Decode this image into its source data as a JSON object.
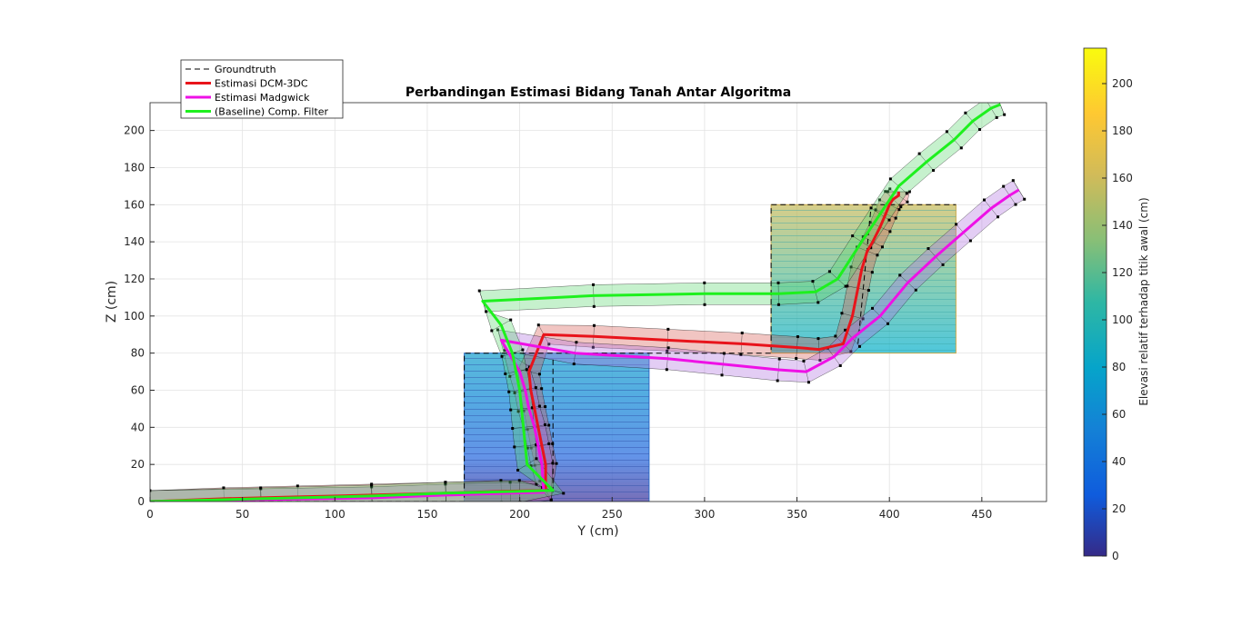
{
  "chart_data": {
    "type": "line",
    "title": "Perbandingan Estimasi Bidang Tanah Antar Algoritma",
    "xlabel": "Y (cm)",
    "ylabel": "Z (cm)",
    "xlim": [
      0,
      485
    ],
    "ylim": [
      0,
      215
    ],
    "xticks": [
      0,
      50,
      100,
      150,
      200,
      250,
      300,
      350,
      400,
      450
    ],
    "yticks": [
      0,
      20,
      40,
      60,
      80,
      100,
      120,
      140,
      160,
      180,
      200
    ],
    "grid": true,
    "legend_position": "top-left",
    "colorbar": {
      "label": "Elevasi relatif terhadap titik awal (cm)",
      "range": [
        0,
        215
      ],
      "ticks": [
        0,
        20,
        40,
        60,
        80,
        100,
        120,
        140,
        160,
        180,
        200
      ],
      "colormap": "parula"
    },
    "steps": [
      {
        "name": "step-1",
        "y": [
          170,
          270
        ],
        "z": [
          0,
          80
        ]
      },
      {
        "name": "step-2",
        "y": [
          336,
          436
        ],
        "z": [
          80,
          160
        ]
      }
    ],
    "series": [
      {
        "name": "Groundtruth",
        "color": "#000000",
        "dash": true,
        "x": [
          0,
          170,
          170,
          270,
          336,
          336,
          436
        ],
        "y": [
          0,
          0,
          80,
          80,
          80,
          160,
          160
        ],
        "lines": [
          {
            "x": [
              218,
              218
            ],
            "y": [
              5,
              78
            ]
          },
          {
            "x": [
              383,
              390
            ],
            "y": [
              85,
              158
            ]
          }
        ]
      },
      {
        "name": "Estimasi DCM-3DC",
        "color": "#e8141b",
        "x": [
          0,
          40,
          80,
          120,
          160,
          190,
          214,
          214,
          212,
          210,
          208,
          206,
          205,
          213,
          240,
          280,
          320,
          350,
          362,
          375,
          380,
          383,
          385,
          388,
          391,
          395,
          398,
          400,
          402,
          405,
          405
        ],
        "y": [
          0,
          1.5,
          2.5,
          3.5,
          4.5,
          5.5,
          6,
          20,
          30,
          40,
          50,
          60,
          70,
          90,
          89,
          87,
          85,
          83,
          82,
          85,
          100,
          115,
          125,
          135,
          140,
          148,
          155,
          160,
          163,
          165,
          167
        ]
      },
      {
        "name": "Estimasi Madgwick",
        "color": "#ee10e6",
        "x": [
          0,
          60,
          120,
          160,
          195,
          213,
          212,
          210,
          208,
          205,
          203,
          200,
          190,
          230,
          280,
          310,
          340,
          355,
          370,
          380,
          395,
          410,
          425,
          440,
          455,
          465,
          470
        ],
        "y": [
          0,
          1,
          2,
          3.5,
          4.5,
          5,
          20,
          30,
          40,
          50,
          60,
          70,
          87,
          80,
          77,
          74,
          71,
          70,
          78,
          88,
          100,
          118,
          132,
          145,
          158,
          165,
          168
        ]
      },
      {
        "name": "(Baseline) Comp. Filter",
        "color": "#1ef01e",
        "x": [
          0,
          60,
          120,
          160,
          200,
          218,
          204,
          203,
          202,
          201,
          200,
          198,
          196,
          190,
          180,
          240,
          300,
          340,
          360,
          372,
          385,
          395,
          405,
          420,
          435,
          445,
          455,
          460
        ],
        "y": [
          0,
          1.5,
          3,
          4.5,
          5.5,
          6,
          20,
          30,
          40,
          50,
          60,
          70,
          80,
          95,
          108,
          111,
          112,
          112,
          113,
          120,
          140,
          155,
          170,
          183,
          195,
          205,
          212,
          214
        ]
      }
    ]
  },
  "legend": {
    "items": [
      {
        "label": "Groundtruth",
        "color": "#000000",
        "dash": true
      },
      {
        "label": "Estimasi DCM-3DC",
        "color": "#e8141b",
        "dash": false
      },
      {
        "label": "Estimasi Madgwick",
        "color": "#ee10e6",
        "dash": false
      },
      {
        "label": "(Baseline) Comp. Filter",
        "color": "#1ef01e",
        "dash": false
      }
    ]
  }
}
